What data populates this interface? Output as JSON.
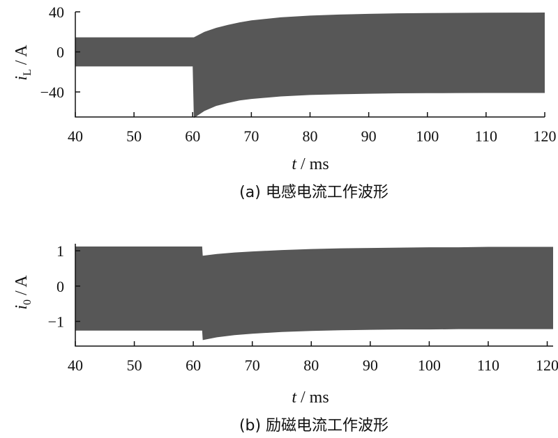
{
  "chart_data": [
    {
      "type": "area",
      "caption": "(a) 电感电流工作波形",
      "xlabel": {
        "var": "t",
        "unit": "ms"
      },
      "ylabel": {
        "var": "i",
        "sub": "L",
        "unit": "A"
      },
      "xlim": [
        40,
        120
      ],
      "ylim": [
        -65,
        40
      ],
      "xticks": [
        "40",
        "50",
        "60",
        "70",
        "80",
        "90",
        "100",
        "110",
        "120"
      ],
      "yticks": [
        "40",
        "0",
        "-40"
      ],
      "ytick_values": [
        40,
        0,
        -40
      ],
      "envelope": {
        "x": [
          40,
          60,
          60.2,
          62,
          64,
          66,
          68,
          70,
          75,
          80,
          85,
          90,
          95,
          100,
          105,
          110,
          115,
          120
        ],
        "upper": [
          14.5,
          14.5,
          14.5,
          20,
          24,
          27,
          29.5,
          31.5,
          34.5,
          36.3,
          37.3,
          38.0,
          38.5,
          38.8,
          39.0,
          39.1,
          39.2,
          39.3
        ],
        "lower": [
          -14.5,
          -14.5,
          -66,
          -59,
          -54,
          -51,
          -48.5,
          -47,
          -44.5,
          -43,
          -42.3,
          -41.8,
          -41.4,
          -41.2,
          -41.1,
          -41.0,
          -41.0,
          -41.0
        ]
      },
      "fill": "#575757"
    },
    {
      "type": "area",
      "caption": "(b) 励磁电流工作波形",
      "xlabel": {
        "var": "t",
        "unit": "ms"
      },
      "ylabel": {
        "var": "i",
        "sub": "0",
        "unit": "A"
      },
      "xlim": [
        40,
        121
      ],
      "ylim": [
        -1.7,
        1.2
      ],
      "xticks": [
        "40",
        "50",
        "60",
        "70",
        "80",
        "90",
        "100",
        "110",
        "120"
      ],
      "yticks": [
        "1",
        "0",
        "-1"
      ],
      "ytick_values": [
        1,
        0,
        -1
      ],
      "envelope": {
        "x": [
          40,
          61.5,
          61.6,
          64,
          67,
          70,
          75,
          80,
          85,
          90,
          95,
          100,
          105,
          110,
          115,
          121
        ],
        "upper": [
          1.12,
          1.12,
          0.86,
          0.91,
          0.95,
          0.98,
          1.02,
          1.05,
          1.07,
          1.08,
          1.09,
          1.1,
          1.1,
          1.11,
          1.11,
          1.11
        ],
        "lower": [
          -1.26,
          -1.26,
          -1.53,
          -1.45,
          -1.39,
          -1.35,
          -1.3,
          -1.27,
          -1.25,
          -1.24,
          -1.23,
          -1.23,
          -1.22,
          -1.22,
          -1.22,
          -1.22
        ]
      },
      "fill": "#575757"
    }
  ]
}
